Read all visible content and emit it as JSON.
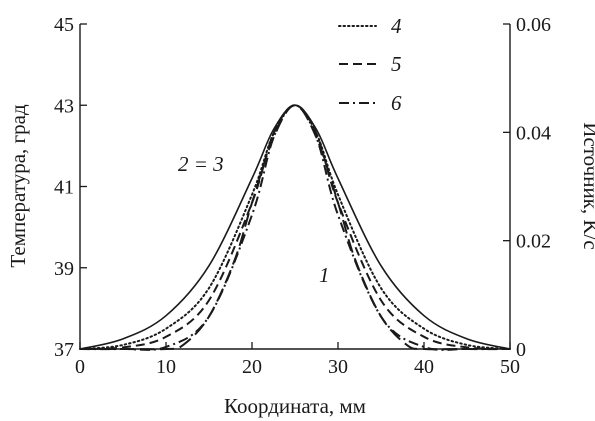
{
  "chart_data": {
    "type": "line",
    "xlabel": "Координата, мм",
    "ylabel_left": "Температура, град",
    "ylabel_right": "Источник, K/c",
    "xlim": [
      0,
      50
    ],
    "ylim_left": [
      37,
      45
    ],
    "ylim_right": [
      0,
      0.06
    ],
    "x_ticks": [
      "0",
      "10",
      "20",
      "30",
      "40",
      "50"
    ],
    "y_left_ticks": [
      "37",
      "39",
      "41",
      "43",
      "45"
    ],
    "y_right_ticks": [
      "0",
      "0.02",
      "0.04",
      "0.06"
    ],
    "grid": false,
    "legend_position": "top-center",
    "series": [
      {
        "name": "2 = 3",
        "style": "solid",
        "x": [
          0,
          5,
          10,
          15,
          20,
          22.5,
          25,
          27.5,
          30,
          35,
          40,
          45,
          50
        ],
        "y": [
          37.0,
          37.25,
          37.82,
          39.05,
          41.2,
          42.4,
          43.0,
          42.4,
          41.2,
          39.05,
          37.82,
          37.25,
          37.0
        ]
      },
      {
        "name": "4",
        "style": "dotted",
        "x": [
          0,
          5,
          10,
          15,
          20,
          22.5,
          25,
          27.5,
          30,
          35,
          40,
          45,
          50
        ],
        "y": [
          37.0,
          37.1,
          37.5,
          38.5,
          40.8,
          42.3,
          43.0,
          42.3,
          40.8,
          38.5,
          37.5,
          37.1,
          37.0
        ]
      },
      {
        "name": "5",
        "style": "dashed",
        "x": [
          0,
          5,
          10,
          15,
          20,
          22.5,
          25,
          27.5,
          30,
          35,
          40,
          45,
          50
        ],
        "y": [
          37.0,
          37.04,
          37.3,
          38.2,
          40.6,
          42.3,
          43.0,
          42.3,
          40.6,
          38.2,
          37.3,
          37.04,
          37.0
        ]
      },
      {
        "name": "6",
        "style": "dashdot",
        "x": [
          0,
          5,
          10,
          15,
          20,
          22.5,
          25,
          27.5,
          30,
          35,
          40,
          45,
          50
        ],
        "y": [
          37.0,
          37.0,
          37.05,
          37.8,
          40.3,
          42.2,
          43.0,
          42.2,
          40.3,
          37.8,
          37.05,
          37.0,
          37.0
        ]
      },
      {
        "name": "1",
        "style": "longdash",
        "x": [
          0,
          5,
          10,
          12,
          15,
          18,
          20,
          22.5,
          25,
          27.5,
          30,
          32,
          35,
          38,
          40,
          45,
          50
        ],
        "y": [
          37.0,
          37.0,
          37.0,
          37.1,
          37.8,
          39.2,
          40.6,
          42.2,
          43.0,
          42.2,
          40.6,
          39.2,
          37.8,
          37.1,
          37.0,
          37.0,
          37.0
        ]
      }
    ],
    "annotations": [
      {
        "text": "2 = 3"
      },
      {
        "text": "1"
      }
    ]
  }
}
